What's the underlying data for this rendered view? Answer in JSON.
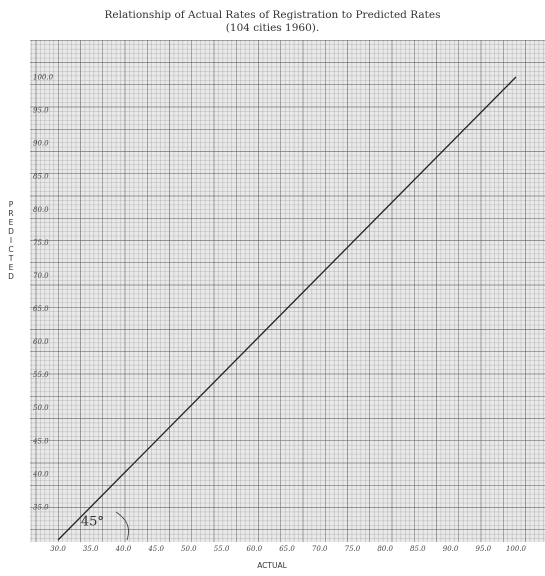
{
  "chart_data": {
    "type": "line",
    "title": "Relationship of Actual Rates of Registration to Predicted Rates",
    "subtitle": "(104 cities 1960).",
    "xlabel": "ACTUAL",
    "ylabel": "PREDICTED",
    "xlim": [
      30,
      100
    ],
    "ylim": [
      30,
      100
    ],
    "x_ticks": [
      "30.0",
      "35.0",
      "40.0",
      "45.0",
      "50.0",
      "55.0",
      "60.0",
      "65.0",
      "70.0",
      "75.0",
      "80.0",
      "85.0",
      "90.0",
      "95.0",
      "100.0"
    ],
    "y_ticks": [
      "35.0",
      "40.0",
      "45.0",
      "50.0",
      "55.0",
      "60.0",
      "65.0",
      "70.0",
      "75.0",
      "80.0",
      "85.0",
      "90.0",
      "95.0",
      "100.0"
    ],
    "grid": true,
    "series": [
      {
        "name": "",
        "x": [
          30,
          100
        ],
        "y": [
          30,
          100
        ],
        "color": "#222222"
      }
    ],
    "annotations": [
      {
        "text": "45°",
        "x": 33.5,
        "y": 32.2
      }
    ]
  }
}
